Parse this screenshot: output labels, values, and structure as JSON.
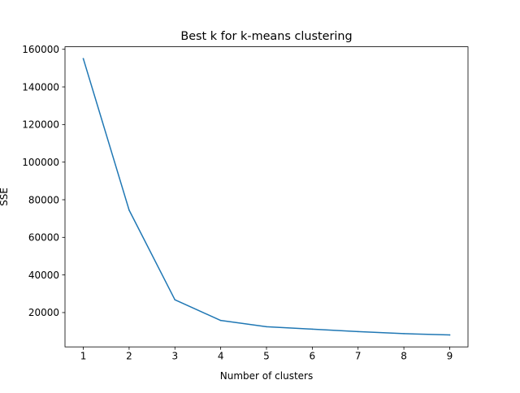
{
  "chart_data": {
    "type": "line",
    "title": "Best k for k-means clustering",
    "xlabel": "Number of clusters",
    "ylabel": "SSE",
    "x": [
      1,
      2,
      3,
      4,
      5,
      6,
      7,
      8,
      9
    ],
    "series": [
      {
        "values": [
          155000,
          74500,
          26800,
          15800,
          12500,
          11200,
          9900,
          8800,
          8100
        ],
        "color": "#1f77b4"
      }
    ],
    "xticks": [
      1,
      2,
      3,
      4,
      5,
      6,
      7,
      8,
      9
    ],
    "yticks": [
      20000,
      40000,
      60000,
      80000,
      100000,
      120000,
      140000,
      160000
    ],
    "xlim": [
      0.6,
      9.4
    ],
    "ylim": [
      1755,
      161345
    ],
    "grid": false,
    "legend": "none"
  }
}
